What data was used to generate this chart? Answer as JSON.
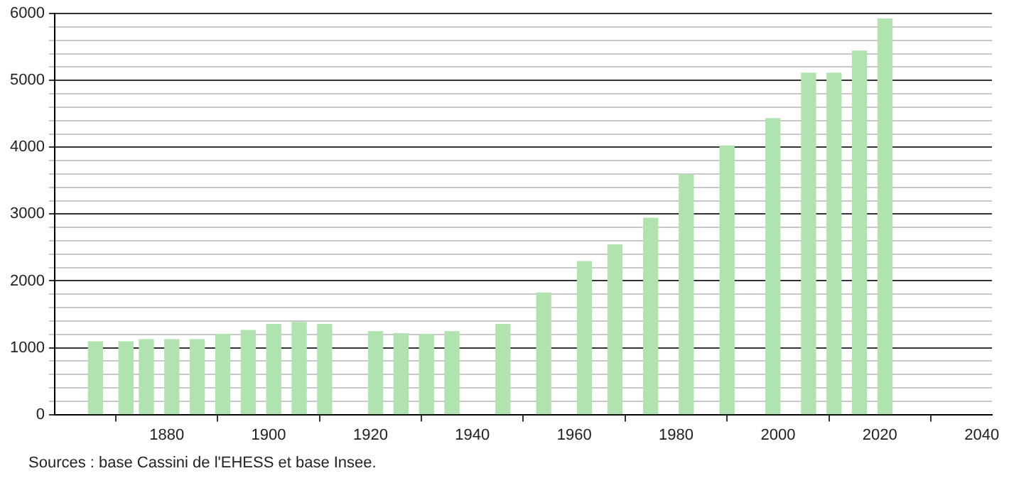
{
  "chart_data": {
    "type": "bar",
    "color": "#b0e3b0",
    "x": [
      1866,
      1872,
      1876,
      1881,
      1886,
      1891,
      1896,
      1901,
      1906,
      1911,
      1921,
      1926,
      1931,
      1936,
      1946,
      1954,
      1962,
      1968,
      1975,
      1982,
      1990,
      1999,
      2006,
      2011,
      2016,
      2021
    ],
    "values": [
      1090,
      1090,
      1120,
      1120,
      1120,
      1200,
      1260,
      1350,
      1380,
      1350,
      1240,
      1210,
      1200,
      1240,
      1350,
      1820,
      2290,
      2540,
      2940,
      3590,
      4020,
      4430,
      5110,
      5110,
      5440,
      5920
    ],
    "xlim": [
      1858,
      2042
    ],
    "xticks": [
      1880,
      1900,
      1920,
      1940,
      1960,
      1980,
      2000,
      2020,
      2040
    ],
    "ylim": [
      0,
      6000
    ],
    "yticks": [
      0,
      {
        "value": 200,
        "label": null
      },
      {
        "value": 400,
        "label": null
      },
      {
        "value": 600,
        "label": null
      },
      {
        "value": 800,
        "label": null
      },
      1000,
      {
        "value": 1200,
        "label": null
      },
      {
        "value": 1400,
        "label": null
      },
      {
        "value": 1600,
        "label": null
      },
      {
        "value": 1800,
        "label": null
      },
      2000,
      {
        "value": 2200,
        "label": null
      },
      {
        "value": 2400,
        "label": null
      },
      {
        "value": 2600,
        "label": null
      },
      {
        "value": 2800,
        "label": null
      },
      3000,
      {
        "value": 3200,
        "label": null
      },
      {
        "value": 3400,
        "label": null
      },
      {
        "value": 3600,
        "label": null
      },
      {
        "value": 3800,
        "label": null
      },
      4000,
      {
        "value": 4200,
        "label": null
      },
      {
        "value": 4400,
        "label": null
      },
      {
        "value": 4600,
        "label": null
      },
      {
        "value": 4800,
        "label": null
      },
      5000,
      {
        "value": 5200,
        "label": null
      },
      {
        "value": 5400,
        "label": null
      },
      {
        "value": 5600,
        "label": null
      },
      {
        "value": 5800,
        "label": null
      },
      6000
    ],
    "grid": "y",
    "legend": false,
    "annotations": [
      "Sources : base Cassini de l'EHESS et base Insee."
    ]
  }
}
